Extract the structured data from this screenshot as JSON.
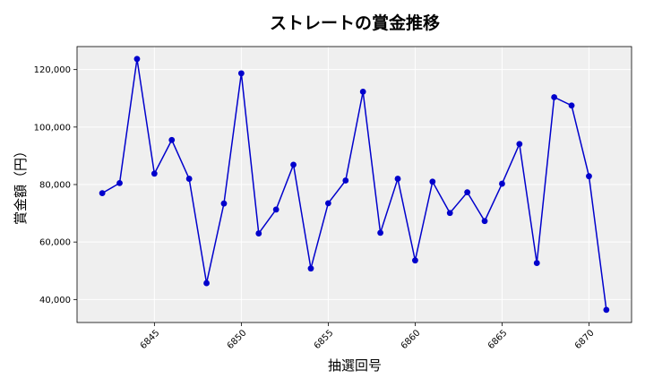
{
  "chart_data": {
    "type": "line",
    "title": "ストレートの賞金推移",
    "xlabel": "抽選回号",
    "ylabel": "賞金額（円）",
    "x": [
      6842,
      6843,
      6844,
      6845,
      6846,
      6847,
      6848,
      6849,
      6850,
      6851,
      6852,
      6853,
      6854,
      6855,
      6856,
      6857,
      6858,
      6859,
      6860,
      6861,
      6862,
      6863,
      6864,
      6865,
      6866,
      6867,
      6868,
      6869,
      6870,
      6871
    ],
    "series": [
      {
        "color": "#0000cc",
        "values": [
          77000,
          80500,
          123700,
          83800,
          95500,
          82000,
          45700,
          73400,
          118700,
          63000,
          71300,
          86900,
          50800,
          73500,
          81400,
          112300,
          63200,
          82000,
          53600,
          81000,
          70100,
          77300,
          67300,
          80300,
          94100,
          52700,
          110400,
          107500,
          82900,
          36400
        ]
      }
    ],
    "xticks": [
      6845,
      6850,
      6855,
      6860,
      6865,
      6870
    ],
    "yticks": [
      40000,
      60000,
      80000,
      100000,
      120000
    ],
    "ytick_labels": [
      "40,000",
      "60,000",
      "80,000",
      "100,000",
      "120,000"
    ],
    "xlim": [
      6840.55,
      6872.45
    ],
    "ylim": [
      32000,
      128000
    ],
    "grid": true,
    "background": "#efefef"
  }
}
